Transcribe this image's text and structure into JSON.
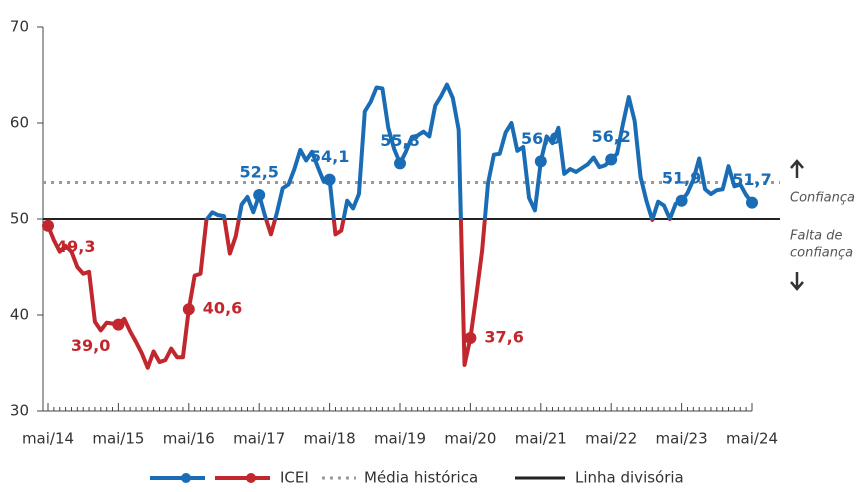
{
  "chart_data": {
    "type": "line",
    "categories": [
      "mai/14",
      null,
      null,
      null,
      null,
      null,
      null,
      null,
      null,
      null,
      null,
      null,
      "mai/15",
      null,
      null,
      null,
      null,
      null,
      null,
      null,
      null,
      null,
      null,
      null,
      "mai/16",
      null,
      null,
      null,
      null,
      null,
      null,
      null,
      null,
      null,
      null,
      null,
      "mai/17",
      null,
      null,
      null,
      null,
      null,
      null,
      null,
      null,
      null,
      null,
      null,
      "mai/18",
      null,
      null,
      null,
      null,
      null,
      null,
      null,
      null,
      null,
      null,
      null,
      "mai/19",
      null,
      null,
      null,
      null,
      null,
      null,
      null,
      null,
      null,
      null,
      null,
      "mai/20",
      null,
      null,
      null,
      null,
      null,
      null,
      null,
      null,
      null,
      null,
      null,
      "mai/21",
      null,
      null,
      null,
      null,
      null,
      null,
      null,
      null,
      null,
      null,
      null,
      "mai/22",
      null,
      null,
      null,
      null,
      null,
      null,
      null,
      null,
      null,
      null,
      null,
      "mai/23",
      null,
      null,
      null,
      null,
      null,
      null,
      null,
      null,
      null,
      null,
      null,
      "mai/24"
    ],
    "series": [
      {
        "name": "ICEI",
        "color": "#1a6db5",
        "color_below": "#c1272d",
        "values": [
          49.3,
          47.8,
          46.6,
          47.2,
          46.6,
          45.0,
          44.3,
          44.5,
          39.3,
          38.4,
          39.2,
          39.1,
          39.0,
          39.6,
          38.3,
          37.2,
          36.0,
          34.5,
          36.2,
          35.1,
          35.3,
          36.5,
          35.6,
          35.6,
          40.6,
          44.1,
          44.3,
          49.9,
          50.7,
          50.4,
          50.3,
          46.4,
          48.2,
          51.5,
          52.3,
          50.7,
          52.5,
          50.3,
          48.4,
          50.6,
          53.2,
          53.6,
          55.2,
          57.2,
          56.1,
          57.0,
          55.4,
          53.9,
          54.1,
          48.4,
          48.8,
          51.9,
          51.1,
          52.6,
          61.2,
          62.2,
          63.7,
          63.6,
          59.5,
          57.3,
          55.8,
          57.0,
          58.5,
          58.7,
          59.1,
          58.6,
          61.8,
          62.8,
          64.0,
          62.6,
          59.3,
          34.8,
          37.6,
          42.0,
          46.7,
          53.7,
          56.7,
          56.8,
          59.0,
          60.0,
          57.1,
          57.5,
          52.2,
          50.9,
          56.0,
          58.6,
          57.9,
          59.5,
          54.7,
          55.2,
          54.9,
          55.3,
          55.7,
          56.4,
          55.4,
          55.6,
          56.2,
          56.8,
          59.9,
          62.7,
          60.2,
          54.4,
          51.9,
          49.9,
          51.8,
          51.4,
          50.0,
          51.6,
          51.9,
          52.7,
          54.1,
          56.3,
          53.1,
          52.6,
          53.0,
          53.1,
          55.5,
          53.4,
          53.6,
          52.5,
          51.7
        ],
        "value_labels": [
          "49,3",
          null,
          null,
          null,
          null,
          null,
          null,
          null,
          null,
          null,
          null,
          null,
          "39,0",
          null,
          null,
          null,
          null,
          null,
          null,
          null,
          null,
          null,
          null,
          null,
          "40,6",
          null,
          null,
          null,
          null,
          null,
          null,
          null,
          null,
          null,
          null,
          null,
          "52,5",
          null,
          null,
          null,
          null,
          null,
          null,
          null,
          null,
          null,
          null,
          null,
          "54,1",
          null,
          null,
          null,
          null,
          null,
          null,
          null,
          null,
          null,
          null,
          null,
          "55,8",
          null,
          null,
          null,
          null,
          null,
          null,
          null,
          null,
          null,
          null,
          null,
          "37,6",
          null,
          null,
          null,
          null,
          null,
          null,
          null,
          null,
          null,
          null,
          null,
          "56,0",
          null,
          null,
          null,
          null,
          null,
          null,
          null,
          null,
          null,
          null,
          null,
          "56,2",
          null,
          null,
          null,
          null,
          null,
          null,
          null,
          null,
          null,
          null,
          null,
          "51,9",
          null,
          null,
          null,
          null,
          null,
          null,
          null,
          null,
          null,
          null,
          null,
          "51,7"
        ]
      }
    ],
    "reference_lines": [
      {
        "name": "Média histórica",
        "value": 53.8,
        "color": "#999999",
        "style": "dotted"
      },
      {
        "name": "Linha divisória",
        "value": 50,
        "color": "#222222",
        "style": "solid"
      }
    ],
    "annotations": {
      "above": "Confiança",
      "below": [
        "Falta de",
        "confiança"
      ]
    },
    "ylim": [
      30,
      70
    ],
    "yticks": [
      30,
      40,
      50,
      60,
      70
    ]
  }
}
